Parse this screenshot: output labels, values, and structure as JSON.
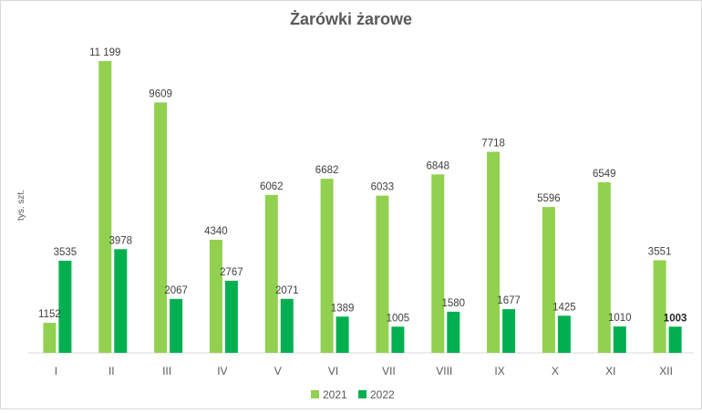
{
  "chart_data": {
    "type": "bar",
    "title": "Żarówki żarowe",
    "ylabel": "tys. szt.",
    "xlabel": "",
    "categories": [
      "I",
      "II",
      "III",
      "IV",
      "V",
      "VI",
      "VII",
      "VIII",
      "IX",
      "X",
      "XI",
      "XII"
    ],
    "series": [
      {
        "name": "2021",
        "color": "#92d050",
        "values": [
          1152,
          11199,
          9609,
          4340,
          6062,
          6682,
          6033,
          6848,
          7718,
          5596,
          6549,
          3551
        ],
        "labels": [
          "1152",
          "11 199",
          "9609",
          "4340",
          "6062",
          "6682",
          "6033",
          "6848",
          "7718",
          "5596",
          "6549",
          "3551"
        ]
      },
      {
        "name": "2022",
        "color": "#00b050",
        "values": [
          3535,
          3978,
          2067,
          2767,
          2071,
          1389,
          1005,
          1580,
          1677,
          1425,
          1010,
          1003
        ],
        "labels": [
          "3535",
          "3978",
          "2067",
          "2767",
          "2071",
          "1389",
          "1005",
          "1580",
          "1677",
          "1425",
          "1010",
          "1003"
        ]
      }
    ],
    "bold_labels": [
      {
        "series": 1,
        "index": 11
      }
    ],
    "ylim": [
      0,
      11199
    ],
    "grid": false,
    "legend_position": "bottom"
  }
}
